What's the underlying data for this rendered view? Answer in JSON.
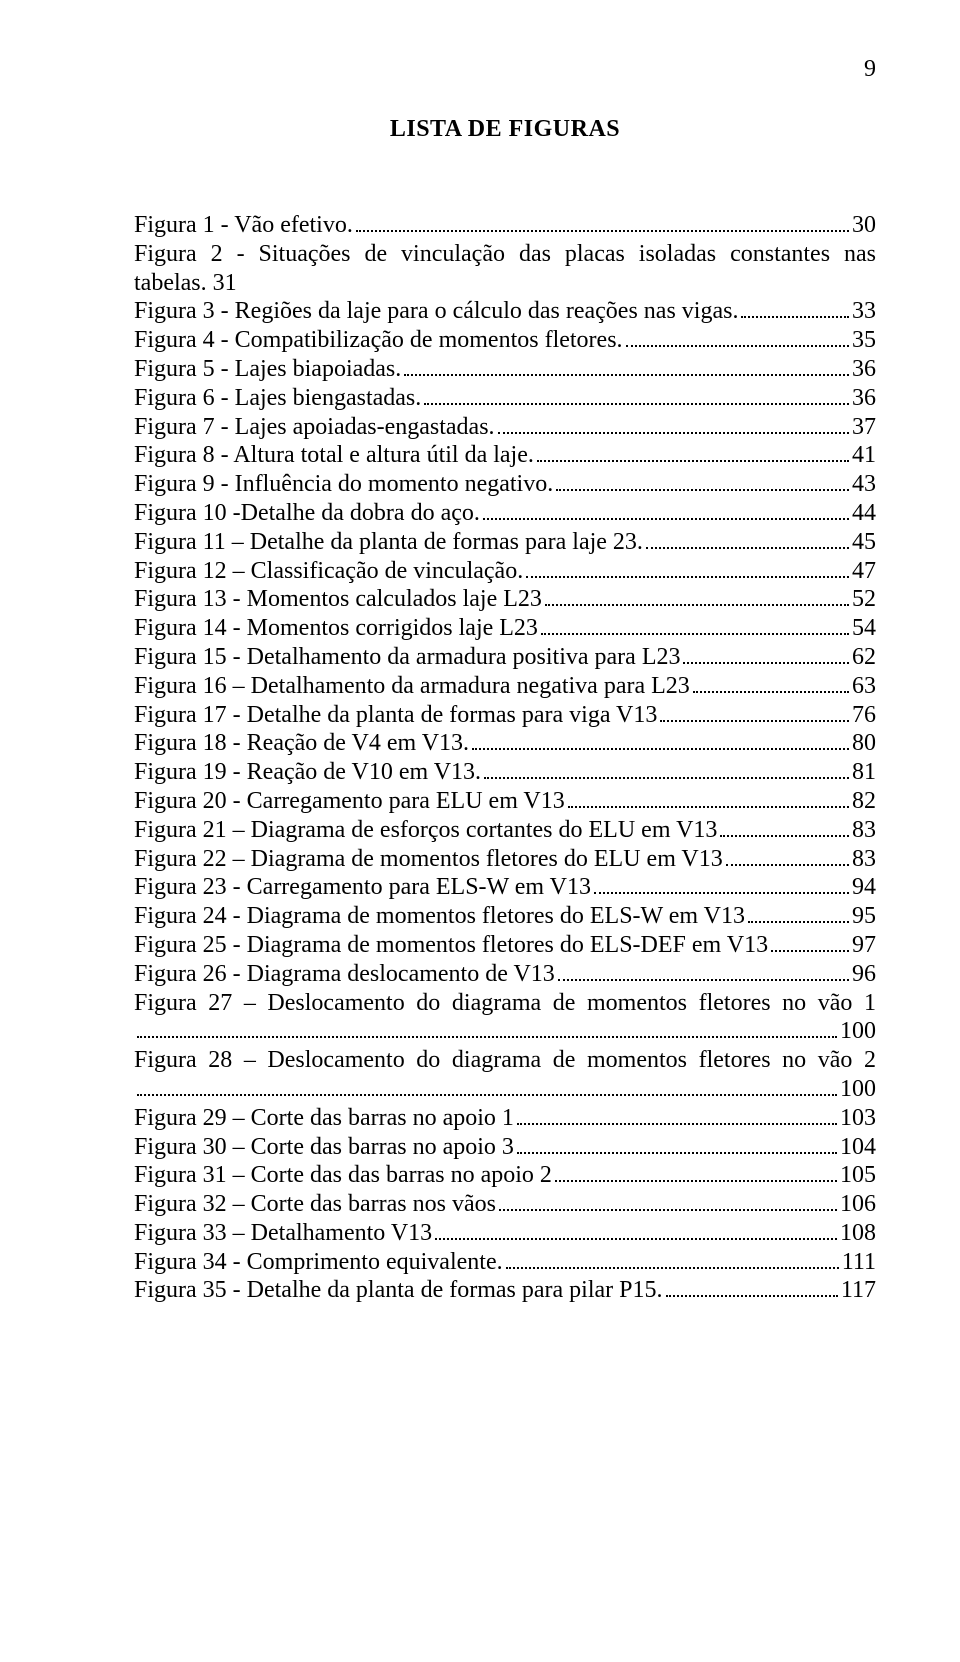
{
  "page_number": "9",
  "title": "LISTA DE FIGURAS",
  "colors": {
    "text": "#000000",
    "background": "#ffffff",
    "dot": "#000000"
  },
  "typography": {
    "font_family": "Times New Roman",
    "body_pt": 24,
    "title_weight": "bold"
  },
  "entries": [
    {
      "label": "Figura 1 - Vão efetivo.",
      "page": "30"
    },
    {
      "label_line1": "Figura 2 - Situações de vinculação das placas isoladas constantes nas",
      "label_line2": "tabelas.",
      "page": "31",
      "wrap": true,
      "nodots_line2": true,
      "page_prefix_space": true
    },
    {
      "label": "Figura 3 - Regiões da laje para o cálculo das reações nas vigas.",
      "page": "33"
    },
    {
      "label": "Figura 4 - Compatibilização de momentos fletores.",
      "page": "35"
    },
    {
      "label": "Figura 5 - Lajes biapoiadas.",
      "page": "36"
    },
    {
      "label": "Figura 6 - Lajes biengastadas.",
      "page": "36"
    },
    {
      "label": "Figura 7 - Lajes apoiadas-engastadas.",
      "page": "37"
    },
    {
      "label": "Figura 8 - Altura total e altura útil da laje.",
      "page": "41"
    },
    {
      "label": "Figura 9 - Influência do momento negativo.",
      "page": "43"
    },
    {
      "label": "Figura 10 -Detalhe da dobra do aço.",
      "page": "44"
    },
    {
      "label": "Figura 11 – Detalhe da planta de formas para laje 23.",
      "page": "45"
    },
    {
      "label": "Figura 12 – Classificação de vinculação.",
      "page": "47"
    },
    {
      "label": "Figura 13 - Momentos calculados laje L23",
      "page": "52"
    },
    {
      "label": "Figura 14 - Momentos corrigidos laje L23",
      "page": "54"
    },
    {
      "label": "Figura 15 - Detalhamento da armadura positiva para L23",
      "page": "62"
    },
    {
      "label": "Figura 16 – Detalhamento da armadura negativa para L23",
      "page": "63"
    },
    {
      "label": "Figura 17 - Detalhe da planta de formas para viga V13",
      "page": "76"
    },
    {
      "label": "Figura 18 - Reação de V4 em V13.",
      "page": "80"
    },
    {
      "label": "Figura 19 - Reação de V10 em V13.",
      "page": "81"
    },
    {
      "label": "Figura 20 - Carregamento para ELU em V13",
      "page": "82"
    },
    {
      "label": "Figura 21 – Diagrama de esforços cortantes do ELU em V13",
      "page": "83"
    },
    {
      "label": "Figura 22 – Diagrama de momentos fletores do ELU em V13",
      "page": "83"
    },
    {
      "label": "Figura 23 - Carregamento para ELS-W em V13",
      "page": "94"
    },
    {
      "label": "Figura 24 - Diagrama de momentos fletores do ELS-W em V13",
      "page": "95"
    },
    {
      "label": "Figura 25 - Diagrama de momentos fletores do ELS-DEF em V13",
      "page": "97"
    },
    {
      "label": "Figura 26 - Diagrama deslocamento de V13",
      "page": "96"
    },
    {
      "label_line1": "Figura 27 – Deslocamento do diagrama de momentos fletores no vão 1",
      "label_line2": "",
      "page": "100",
      "wrap": true
    },
    {
      "label_line1": "Figura 28 – Deslocamento do diagrama de momentos fletores no vão 2",
      "label_line2": "",
      "page": "100",
      "wrap": true
    },
    {
      "label": "Figura 29 – Corte das barras no apoio 1",
      "page": "103"
    },
    {
      "label": "Figura 30 – Corte das barras no apoio 3",
      "page": "104"
    },
    {
      "label": "Figura 31 – Corte das das barras no apoio 2",
      "page": "105"
    },
    {
      "label": "Figura 32 – Corte das barras nos vãos",
      "page": "106"
    },
    {
      "label": "Figura 33 – Detalhamento V13",
      "page": "108"
    },
    {
      "label": "Figura 34 - Comprimento equivalente.",
      "page": "111"
    },
    {
      "label": "Figura 35 - Detalhe da planta de formas para pilar P15.",
      "page": "117"
    }
  ]
}
